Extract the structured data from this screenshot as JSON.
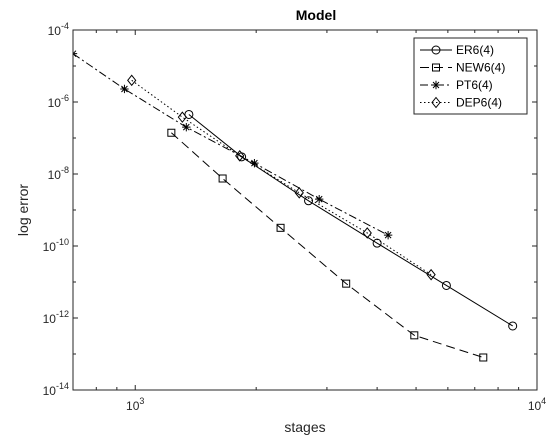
{
  "chart_data": {
    "type": "line",
    "title": "Model",
    "xlabel": "stages",
    "ylabel": "log error",
    "xscale": "log",
    "yscale": "log",
    "xlim": [
      700,
      10000
    ],
    "ylim": [
      1e-14,
      0.0001
    ],
    "xticks": [
      {
        "value": 1000,
        "base": "10",
        "exp": "3"
      },
      {
        "value": 10000,
        "base": "10",
        "exp": "4"
      }
    ],
    "yticks": [
      {
        "value": 1e-14,
        "base": "10",
        "exp": "-14"
      },
      {
        "value": 1e-12,
        "base": "10",
        "exp": "-12"
      },
      {
        "value": 1e-10,
        "base": "10",
        "exp": "-10"
      },
      {
        "value": 1e-08,
        "base": "10",
        "exp": "-8"
      },
      {
        "value": 1e-06,
        "base": "10",
        "exp": "-6"
      },
      {
        "value": 0.0001,
        "base": "10",
        "exp": "-4"
      }
    ],
    "grid": false,
    "legend": "top-right",
    "series": [
      {
        "name": "ER6(4)",
        "marker": "circle",
        "dash": "solid",
        "color": "#000000",
        "x": [
          1360,
          1840,
          2700,
          4000,
          5950,
          8700
        ],
        "y": [
          4.5e-07,
          3e-08,
          1.8e-09,
          1.2e-10,
          8e-12,
          6e-13
        ]
      },
      {
        "name": "NEW6(4)",
        "marker": "square",
        "dash": "dashed",
        "color": "#000000",
        "x": [
          1230,
          1650,
          2300,
          3350,
          4950,
          7350
        ],
        "y": [
          1.4e-07,
          7.5e-09,
          3.2e-10,
          9e-12,
          3.3e-13,
          8e-14
        ]
      },
      {
        "name": "PT6(4)",
        "marker": "star",
        "dash": "dashdot",
        "color": "#000000",
        "x": [
          700,
          940,
          1340,
          1980,
          2870,
          4260
        ],
        "y": [
          2.2e-05,
          2.3e-06,
          2e-07,
          2e-08,
          2e-09,
          2e-10
        ]
      },
      {
        "name": "DEP6(4)",
        "marker": "diamond",
        "dash": "dotted",
        "color": "#000000",
        "x": [
          980,
          1310,
          1820,
          2560,
          3780,
          5450
        ],
        "y": [
          4e-06,
          3.8e-07,
          3.2e-08,
          3e-09,
          2.3e-10,
          1.6e-11
        ]
      }
    ]
  }
}
